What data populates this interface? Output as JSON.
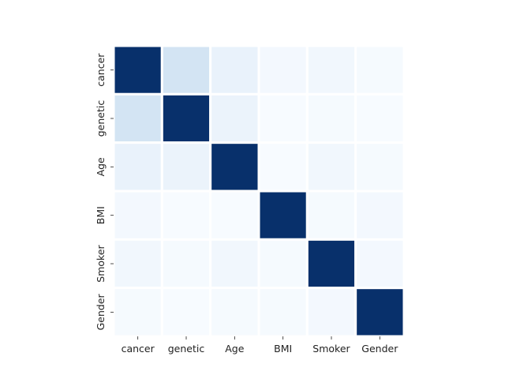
{
  "chart_data": {
    "type": "heatmap",
    "title": "",
    "xlabel": "",
    "ylabel": "",
    "x_categories": [
      "cancer",
      "genetic",
      "Age",
      "BMI",
      "Smoker",
      "Gender"
    ],
    "y_categories": [
      "cancer",
      "genetic",
      "Age",
      "BMI",
      "Smoker",
      "Gender"
    ],
    "values": [
      [
        1.0,
        0.18,
        0.07,
        0.02,
        0.03,
        0.01
      ],
      [
        0.18,
        1.0,
        0.06,
        0.0,
        0.01,
        0.0
      ],
      [
        0.07,
        0.06,
        1.0,
        0.0,
        0.03,
        0.01
      ],
      [
        0.02,
        0.0,
        0.0,
        1.0,
        0.01,
        0.02
      ],
      [
        0.03,
        0.01,
        0.03,
        0.01,
        1.0,
        0.02
      ],
      [
        0.01,
        0.0,
        0.01,
        0.01,
        0.02,
        1.0
      ]
    ],
    "colormap": "Blues",
    "color_low": "#f7fbff",
    "color_high": "#08306b",
    "cell_separator_color": "#ffffff",
    "colorbar": false,
    "grid": false
  }
}
